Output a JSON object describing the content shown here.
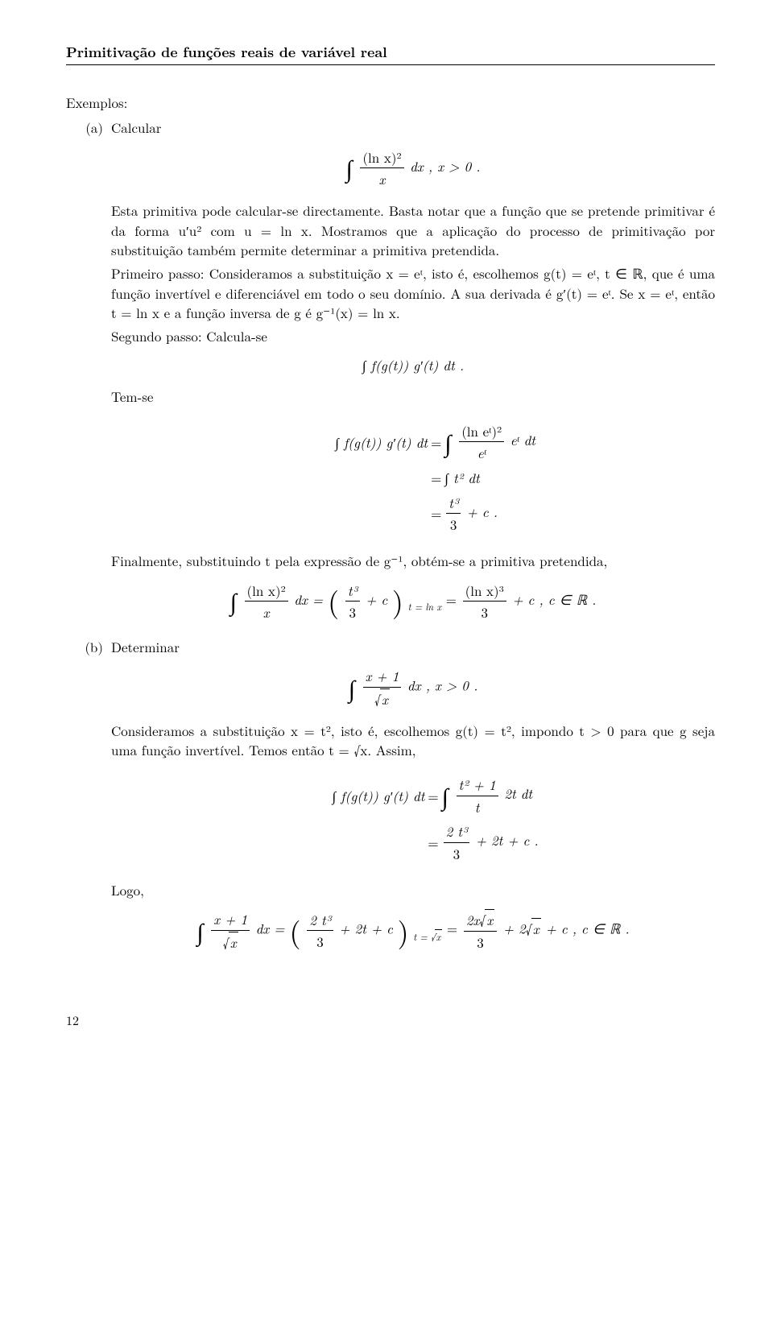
{
  "header": {
    "title": "Primitivação de funções reais de variável real"
  },
  "section_label": "Exemplos:",
  "item_a": {
    "label": "(a)",
    "lead": "Calcular",
    "integral1_lhs_num": "(ln x)²",
    "integral1_lhs_den": "x",
    "integral1_rhs": "dx ,    x > 0 .",
    "p1": "Esta primitiva pode calcular-se directamente. Basta notar que a função que se pretende primitivar é da forma u′u² com u = ln x. Mostramos que a aplicação do processo de primitivação por substituição também permite determinar a primitiva pretendida.",
    "p2": "Primeiro passo: Consideramos a substituição x = eᵗ, isto é, escolhemos g(t) = eᵗ, t ∈ ℝ, que é uma função invertível e diferenciável em todo o seu domínio. A sua derivada é g′(t) = eᵗ. Se x = eᵗ, então t = ln x e a função inversa de g é g⁻¹(x) = ln x.",
    "p3": "Segundo passo: Calcula-se",
    "disp2": "∫ f(g(t)) g′(t) dt .",
    "temse": "Tem-se",
    "align1_l": "∫ f(g(t)) g′(t) dt",
    "align1_r_num": "(ln eᵗ)²",
    "align1_r_den": "eᵗ",
    "align1_r_tail": " eᵗ dt",
    "align2_r": "∫ t² dt",
    "align3_r_num": "t³",
    "align3_r_den": "3",
    "align3_r_tail": " + c .",
    "p4": "Finalmente, substituindo t pela expressão de g⁻¹, obtém-se a primitiva pretendida,",
    "final_int_num": "(ln x)²",
    "final_int_den": "x",
    "final_mid_num": "t³",
    "final_mid_den": "3",
    "final_mid_tail": " + c",
    "final_sub": "t = ln x",
    "final_rhs_num": "(ln x)³",
    "final_rhs_den": "3",
    "final_rhs_tail": " + c ,    c ∈ ℝ ."
  },
  "item_b": {
    "label": "(b)",
    "lead": "Determinar",
    "integral_num": "x + 1",
    "integral_den_radicand": "x",
    "integral_tail": " dx ,    x > 0 .",
    "p1": "Consideramos a substituição x = t², isto é, escolhemos g(t) = t², impondo t > 0 para que g seja uma função invertível. Temos então t = √x. Assim,",
    "align1_l": "∫ f(g(t)) g′(t) dt",
    "align1_r_num": "t² + 1",
    "align1_r_den": "t",
    "align1_r_tail": " 2t dt",
    "align2_r_num": "2 t³",
    "align2_r_den": "3",
    "align2_r_tail": " + 2t + c .",
    "logo": "Logo,",
    "final_l_num": "x + 1",
    "final_l_den_radicand": "x",
    "final_mid_num": "2 t³",
    "final_mid_den": "3",
    "final_mid_tail": " + 2t + c",
    "final_sub_radicand": "x",
    "final_sub_prefix": "t = ",
    "final_rhs_num_coeff": "2x",
    "final_rhs_num_radicand": "x",
    "final_rhs_den": "3",
    "final_rhs_tail_coeff": " + 2",
    "final_rhs_tail_radicand": "x",
    "final_rhs_tail_end": " + c ,    c ∈ ℝ ."
  },
  "page_number": "12"
}
